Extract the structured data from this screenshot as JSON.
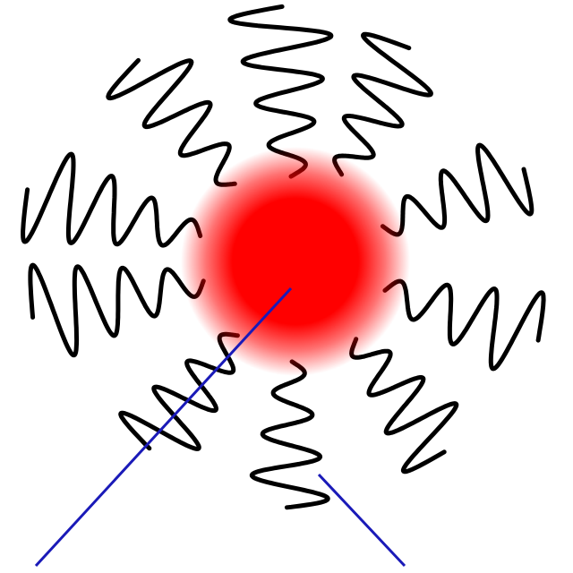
{
  "diagram": {
    "background_color": "#ffffff",
    "wave_color": "#000000",
    "line_color": "#1a1ab8",
    "core_color": "#ff0000",
    "core": {
      "shape": "blurred-circle"
    },
    "waves": {
      "count": 10,
      "arrangement": "radial",
      "shape": "damped-sine"
    },
    "lines": {
      "count": 2,
      "shape": "straight"
    }
  }
}
